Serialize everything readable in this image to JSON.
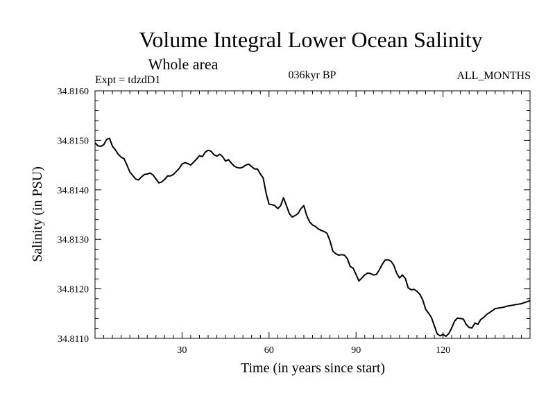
{
  "chart_data": {
    "type": "line",
    "title": "Volume Integral Lower Ocean Salinity",
    "subtitle": "Whole area",
    "annotations": {
      "experiment": "Expt = tdzdD1",
      "period": "036kyr BP",
      "months": "ALL_MONTHS"
    },
    "xlabel": "Time (in years since start)",
    "ylabel": "Salinity (in PSU)",
    "xlim": [
      0,
      150
    ],
    "ylim": [
      34.811,
      34.816
    ],
    "xticks": [
      30,
      60,
      90,
      120
    ],
    "xtick_labels": [
      "30",
      "60",
      "90",
      "120"
    ],
    "yticks": [
      34.811,
      34.812,
      34.813,
      34.814,
      34.815,
      34.816
    ],
    "ytick_labels": [
      "34.8110",
      "34.8120",
      "34.8130",
      "34.8140",
      "34.8150",
      "34.8160"
    ],
    "series": [
      {
        "name": "Salinity",
        "color": "#000000",
        "x": [
          0,
          1,
          2,
          3,
          4,
          5,
          6,
          7,
          8,
          9,
          10,
          11,
          12,
          13,
          14,
          15,
          16,
          17,
          18,
          19,
          20,
          21,
          22,
          23,
          24,
          25,
          26,
          27,
          28,
          29,
          30,
          31,
          32,
          33,
          34,
          35,
          36,
          37,
          38,
          39,
          40,
          41,
          42,
          43,
          44,
          45,
          46,
          47,
          48,
          49,
          50,
          51,
          52,
          53,
          54,
          55,
          56,
          57,
          58,
          59,
          60,
          61,
          62,
          63,
          64,
          65,
          66,
          67,
          68,
          69,
          70,
          71,
          72,
          73,
          74,
          75,
          76,
          77,
          78,
          79,
          80,
          81,
          82,
          83,
          84,
          85,
          86,
          87,
          88,
          89,
          90,
          91,
          92,
          93,
          94,
          95,
          96,
          97,
          98,
          99,
          100,
          101,
          102,
          103,
          104,
          105,
          106,
          107,
          108,
          109,
          110,
          111,
          112,
          113,
          114,
          115,
          116,
          117,
          118,
          119,
          120,
          121,
          122,
          123,
          124,
          125,
          126,
          127,
          128,
          129,
          130,
          131,
          132,
          133,
          134,
          135,
          136,
          137,
          138,
          139,
          140,
          141,
          142,
          143,
          144,
          145,
          146,
          147,
          148,
          149,
          150
        ],
        "values": [
          34.81495,
          34.81489,
          34.81488,
          34.81491,
          34.81502,
          34.81504,
          34.81488,
          34.81481,
          34.81472,
          34.81466,
          34.81463,
          34.8145,
          34.81436,
          34.81429,
          34.81422,
          34.8142,
          34.81426,
          34.81431,
          34.81432,
          34.81434,
          34.8143,
          34.81422,
          34.81414,
          34.81416,
          34.81421,
          34.81428,
          34.81428,
          34.81431,
          34.81437,
          34.81443,
          34.81452,
          34.81455,
          34.81453,
          34.8145,
          34.81456,
          34.81462,
          34.81469,
          34.81467,
          34.81476,
          34.8148,
          34.81478,
          34.81471,
          34.81468,
          34.81472,
          34.81467,
          34.81458,
          34.81461,
          34.81454,
          34.81448,
          34.81445,
          34.81444,
          34.81446,
          34.8145,
          34.81452,
          34.81447,
          34.81442,
          34.81442,
          34.81432,
          34.81424,
          34.81393,
          34.81371,
          34.8137,
          34.81368,
          34.81362,
          34.81368,
          34.81384,
          34.81368,
          34.81352,
          34.81345,
          34.81348,
          34.81352,
          34.81362,
          34.81368,
          34.81348,
          34.81335,
          34.81329,
          34.81326,
          34.81321,
          34.81318,
          34.81316,
          34.81312,
          34.81297,
          34.81276,
          34.81271,
          34.81268,
          34.81269,
          34.81268,
          34.81261,
          34.81245,
          34.81242,
          34.81229,
          34.81216,
          34.81222,
          34.81228,
          34.81232,
          34.81231,
          34.81228,
          34.81229,
          34.81238,
          34.81249,
          34.81258,
          34.81259,
          34.81256,
          34.81248,
          34.81232,
          34.81222,
          34.81228,
          34.81221,
          34.81202,
          34.81198,
          34.81199,
          34.81195,
          34.81189,
          34.81178,
          34.81159,
          34.81151,
          34.81142,
          34.81125,
          34.81109,
          34.81105,
          34.81108,
          34.81104,
          34.8111,
          34.81121,
          34.81135,
          34.81141,
          34.8114,
          34.81139,
          34.81128,
          34.81122,
          34.81121,
          34.81131,
          34.81128,
          34.81138,
          34.81142,
          34.81148,
          34.81152,
          34.81156,
          34.8116,
          34.81161,
          34.81162,
          34.81163,
          34.81165,
          34.81166,
          34.81167,
          34.81168,
          34.81169,
          34.8117,
          34.81172,
          34.81174,
          34.81176
        ]
      }
    ]
  }
}
